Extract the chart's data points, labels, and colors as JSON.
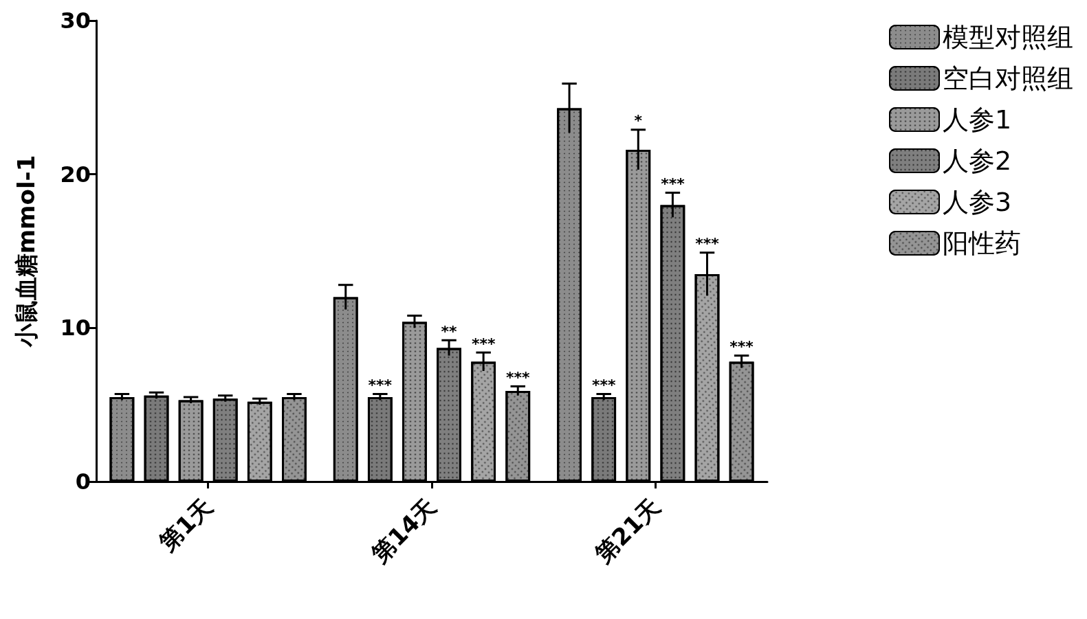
{
  "chart_data": {
    "type": "bar",
    "ylabel": "小鼠血糖mmol-1",
    "categories": [
      "第1天",
      "第14天",
      "第21天"
    ],
    "ylim": [
      0,
      30
    ],
    "yticks": [
      0,
      10,
      20,
      30
    ],
    "grid": false,
    "legend": "top right",
    "series": [
      {
        "name": "模型对照组",
        "color": "#8c8c8c",
        "values": [
          5.5,
          12.0,
          24.3
        ],
        "errors": [
          0.2,
          0.8,
          1.6
        ],
        "value_labels": [
          null,
          null,
          null
        ]
      },
      {
        "name": "空白对照组",
        "color": "#7a7a7a",
        "values": [
          5.6,
          5.5,
          5.5
        ],
        "errors": [
          0.2,
          0.2,
          0.2
        ],
        "value_labels": [
          null,
          "***",
          "***"
        ]
      },
      {
        "name": "人参1",
        "color": "#9a9a9a",
        "values": [
          5.3,
          10.4,
          21.6
        ],
        "errors": [
          0.2,
          0.4,
          1.3
        ],
        "value_labels": [
          null,
          null,
          "*"
        ]
      },
      {
        "name": "人参2",
        "color": "#7f7f7f",
        "values": [
          5.4,
          8.7,
          18.0
        ],
        "errors": [
          0.2,
          0.5,
          0.8
        ],
        "value_labels": [
          null,
          "**",
          "***"
        ]
      },
      {
        "name": "人参3",
        "color": "#a5a5a5",
        "values": [
          5.2,
          7.8,
          13.5
        ],
        "errors": [
          0.2,
          0.6,
          1.4
        ],
        "value_labels": [
          null,
          "***",
          "***"
        ]
      },
      {
        "name": "阳性药",
        "color": "#959595",
        "values": [
          5.5,
          5.9,
          7.8
        ],
        "errors": [
          0.2,
          0.3,
          0.4
        ],
        "value_labels": [
          null,
          "***",
          "***"
        ]
      }
    ]
  }
}
